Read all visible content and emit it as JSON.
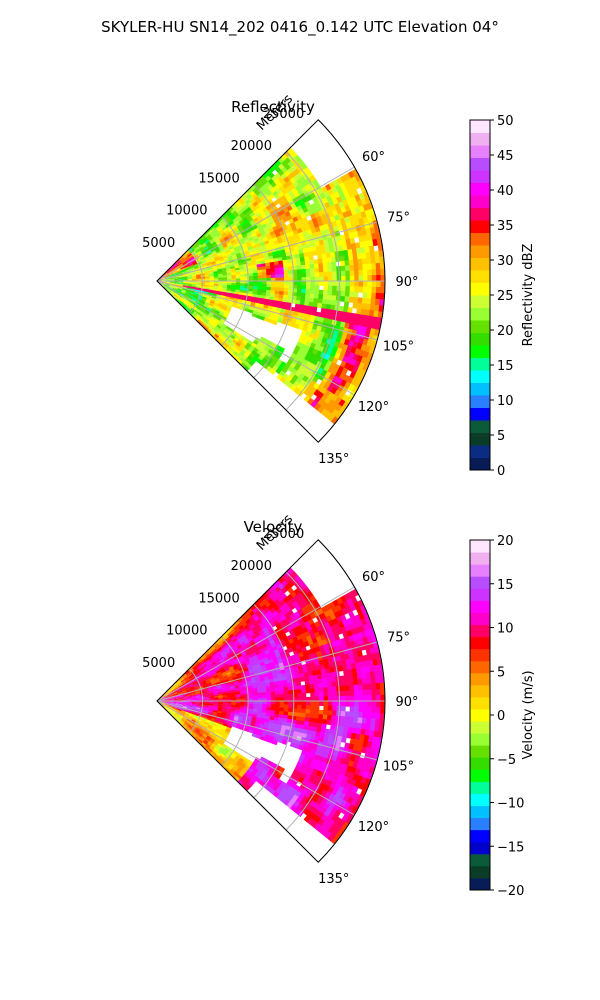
{
  "figure_title": "SKYLER-HU  SN14_202  0416_0.142 UTC Elevation 04°",
  "chart_data": [
    {
      "type": "heatmap",
      "subtype": "polar_sector_ppi",
      "title": "Reflectivity",
      "range_axis_label": "Meters",
      "range_ticks": [
        5000,
        10000,
        15000,
        20000,
        25000
      ],
      "range_tick_labels": [
        "5000",
        "10000",
        "15000",
        "20000",
        "25000"
      ],
      "range_max": 25000,
      "azimuth_range": [
        45,
        135
      ],
      "azimuth_ticks": [
        60,
        75,
        90,
        105,
        120,
        135
      ],
      "azimuth_tick_labels": [
        "60°",
        "75°",
        "90°",
        "105°",
        "120°",
        "135°"
      ],
      "grid": true,
      "colorbar": {
        "label": "Reflectivity dBZ",
        "range": [
          0,
          50
        ],
        "ticks": [
          0,
          5,
          10,
          15,
          20,
          25,
          30,
          35,
          40,
          45,
          50
        ],
        "tick_labels": [
          "0",
          "5",
          "10",
          "15",
          "20",
          "25",
          "30",
          "35",
          "40",
          "45",
          "50"
        ],
        "colormap": [
          "#081d58",
          "#0c2c84",
          "#0a3c28",
          "#0b5a3a",
          "#0000ff",
          "#2a7fff",
          "#00c0ff",
          "#00ffff",
          "#00ff99",
          "#00ff00",
          "#33dd00",
          "#66e000",
          "#99ff33",
          "#ccff33",
          "#ffff00",
          "#ffe000",
          "#ffc000",
          "#ff9900",
          "#ff6600",
          "#ff0000",
          "#ff0066",
          "#ff00cc",
          "#ff00ff",
          "#cc33ff",
          "#b84dff",
          "#e680ff",
          "#f0b0f0",
          "#ffe6ff"
        ]
      }
    },
    {
      "type": "heatmap",
      "subtype": "polar_sector_ppi",
      "title": "Velocity",
      "range_axis_label": "Meters",
      "range_ticks": [
        5000,
        10000,
        15000,
        20000,
        25000
      ],
      "range_tick_labels": [
        "5000",
        "10000",
        "15000",
        "20000",
        "25000"
      ],
      "range_max": 25000,
      "azimuth_range": [
        45,
        135
      ],
      "azimuth_ticks": [
        60,
        75,
        90,
        105,
        120,
        135
      ],
      "azimuth_tick_labels": [
        "60°",
        "75°",
        "90°",
        "105°",
        "120°",
        "135°"
      ],
      "grid": true,
      "colorbar": {
        "label": "Velocity (m/s)",
        "range": [
          -20,
          20
        ],
        "ticks": [
          -20,
          -15,
          -10,
          -5,
          0,
          5,
          10,
          15,
          20
        ],
        "tick_labels": [
          "−20",
          "−15",
          "−10",
          "−5",
          "0",
          "5",
          "10",
          "15",
          "20"
        ],
        "colormap": [
          "#081d58",
          "#0a3c28",
          "#0b5a3a",
          "#0000cc",
          "#0000ff",
          "#2a7fff",
          "#00c0ff",
          "#00ffff",
          "#00ff99",
          "#00ff00",
          "#33dd00",
          "#66e000",
          "#99ff33",
          "#ccff33",
          "#ffff00",
          "#ffe000",
          "#ffc000",
          "#ff9900",
          "#ff6600",
          "#ff3300",
          "#ff0000",
          "#ff0066",
          "#ff00cc",
          "#ff00ff",
          "#cc33ff",
          "#b84dff",
          "#e680ff",
          "#f0b0f0",
          "#ffe6ff"
        ]
      }
    }
  ]
}
